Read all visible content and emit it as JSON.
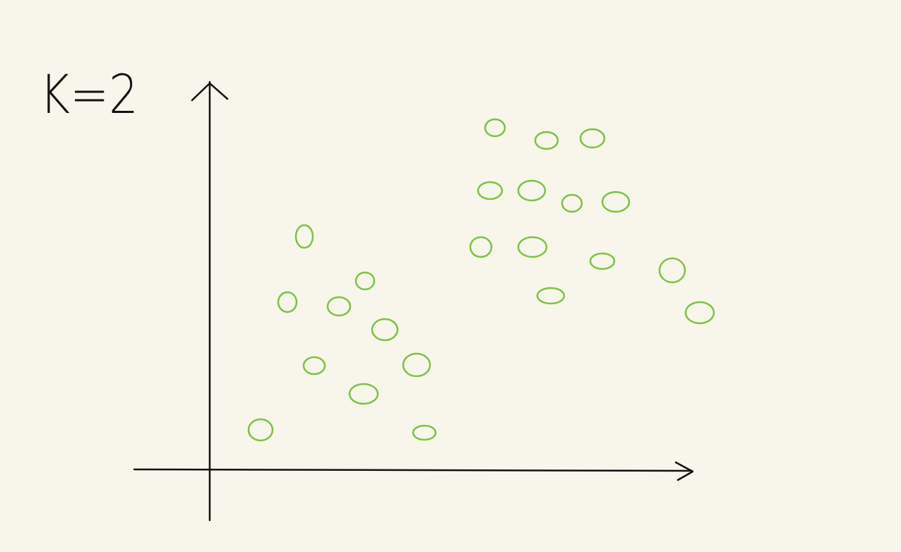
{
  "annotation": "K=2"
}
